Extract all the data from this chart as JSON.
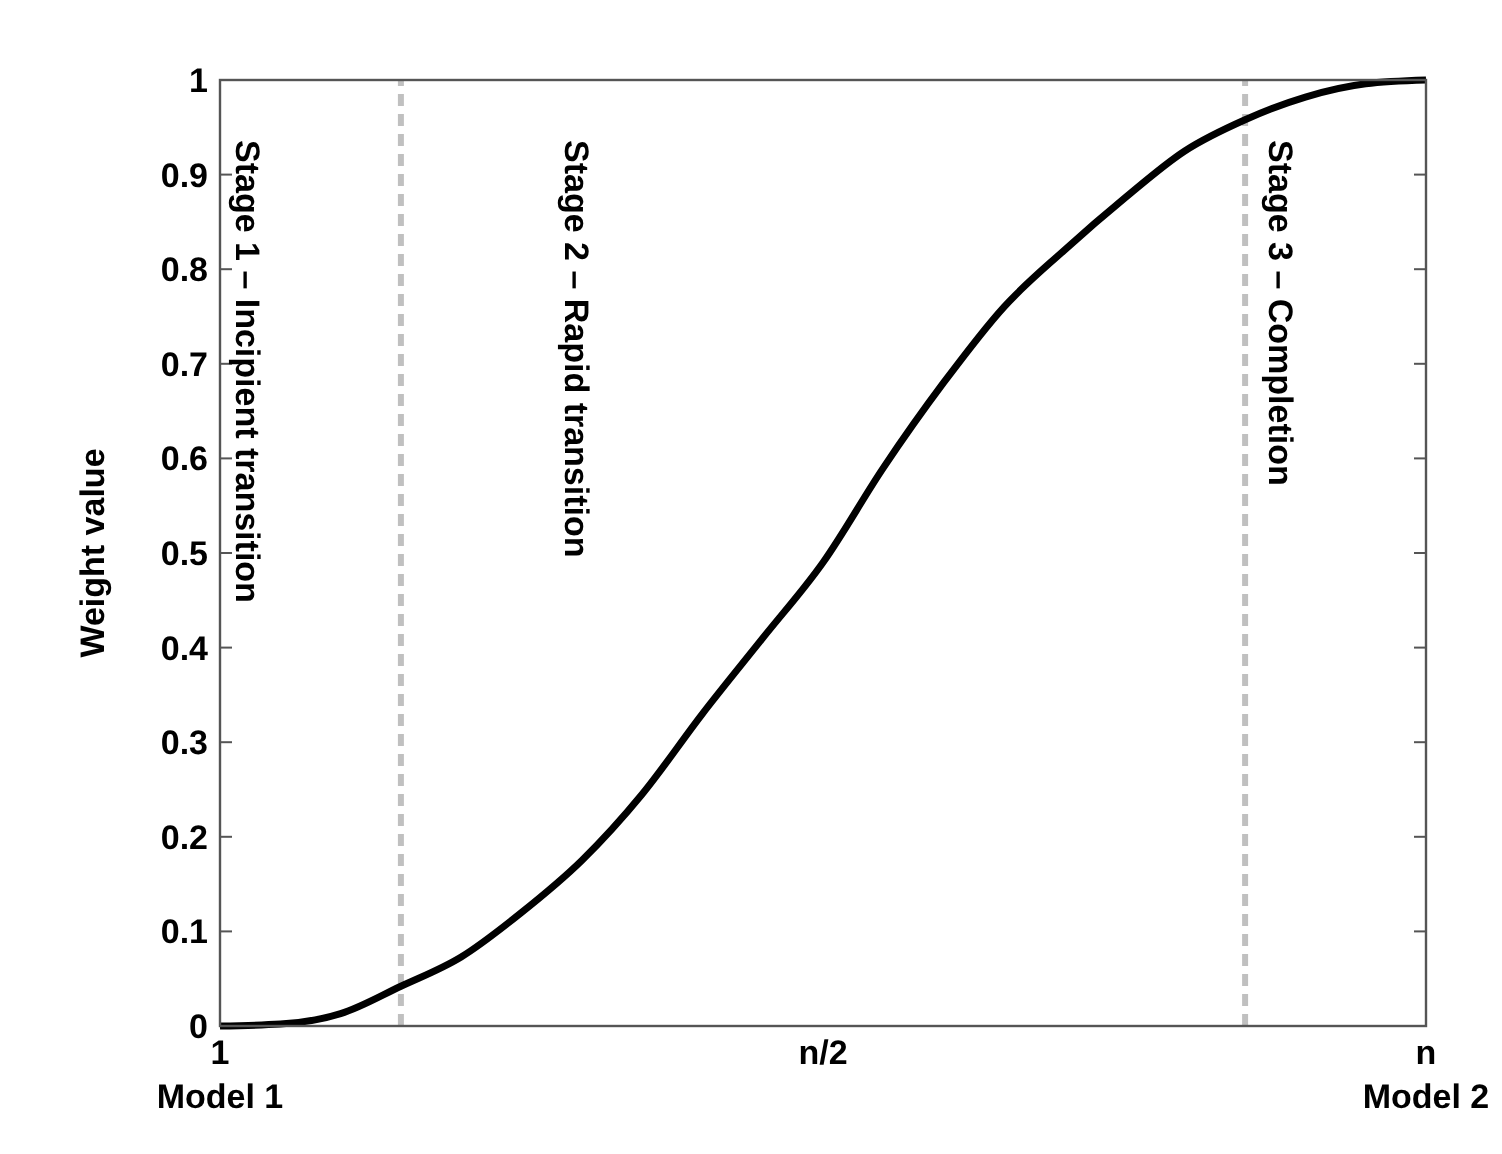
{
  "chart_data": {
    "type": "line",
    "ylabel": "Weight value",
    "categories": [
      "1\nModel 1",
      null,
      null,
      null,
      null,
      null,
      null,
      null,
      null,
      null,
      "n/2",
      null,
      null,
      null,
      null,
      null,
      null,
      null,
      null,
      null,
      "n\nModel 2"
    ],
    "series": [
      {
        "color": "#000000",
        "values": [
          0,
          0.002,
          0.013,
          0.042,
          0.073,
          0.12,
          0.175,
          0.245,
          0.33,
          0.41,
          0.49,
          0.59,
          0.68,
          0.76,
          0.82,
          0.875,
          0.925,
          0.958,
          0.982,
          0.996,
          1
        ]
      }
    ],
    "ylim": [
      0,
      1
    ],
    "yticks": [
      0,
      0.1,
      0.2,
      0.3,
      0.4,
      0.5,
      0.6,
      0.7,
      0.8,
      0.9,
      1
    ],
    "annotations": [
      "Stage 1 – Incipient transition",
      "Stage 2 – Rapid transition",
      "Stage 3 – Completion"
    ],
    "line_style": "solid",
    "marker": "none"
  }
}
